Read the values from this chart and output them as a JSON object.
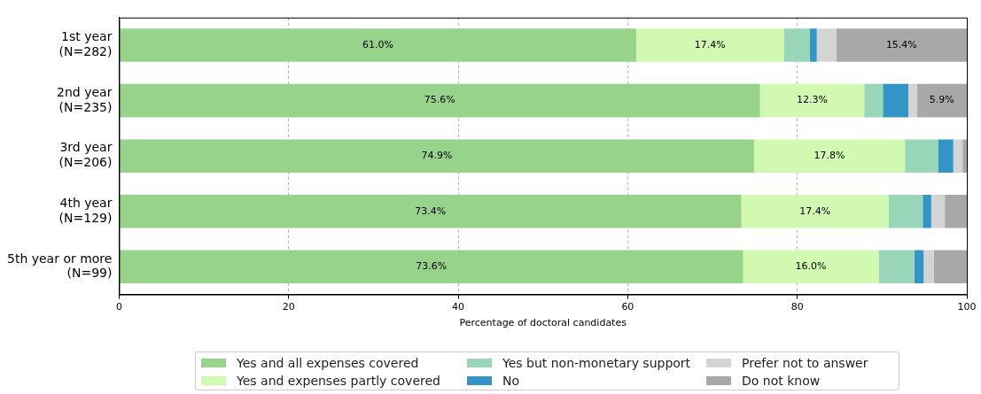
{
  "chart_data": {
    "type": "bar",
    "orientation": "horizontal",
    "stacked": true,
    "xlabel": "Percentage of doctoral candidates",
    "categories": [
      "1st year\n(N=282)",
      "2nd year\n(N=235)",
      "3rd year\n(N=206)",
      "4th year\n(N=129)",
      "5th year or more\n(N=99)"
    ],
    "xlim": [
      0,
      100
    ],
    "xticks": [
      0,
      20,
      40,
      60,
      80,
      100
    ],
    "grid": "x",
    "legend": "bottom",
    "series": [
      {
        "name": "Yes and all expenses covered",
        "color": "#98d38c",
        "values": [
          61.0,
          75.6,
          74.9,
          73.4,
          73.6
        ],
        "value_labels": [
          "61.0%",
          "75.6%",
          "74.9%",
          "73.4%",
          "73.6%"
        ]
      },
      {
        "name": "Yes and expenses partly covered",
        "color": "#d1f9b1",
        "values": [
          17.4,
          12.3,
          17.8,
          17.4,
          16.0
        ],
        "value_labels": [
          "17.4%",
          "12.3%",
          "17.8%",
          "17.4%",
          "16.0%"
        ]
      },
      {
        "name": "Yes but non-monetary support",
        "color": "#99d6b9",
        "values": [
          3.1,
          2.2,
          3.9,
          4.0,
          4.2
        ]
      },
      {
        "name": "No",
        "color": "#3494c6",
        "values": [
          0.8,
          3.0,
          1.8,
          1.0,
          1.1
        ]
      },
      {
        "name": "Prefer not to answer",
        "color": "#d4d4d4",
        "values": [
          2.3,
          1.0,
          1.1,
          1.6,
          1.2
        ]
      },
      {
        "name": "Do not know",
        "color": "#a8a8a8",
        "values": [
          15.4,
          5.9,
          0.5,
          2.6,
          3.9
        ],
        "value_labels": [
          "15.4%",
          "5.9%",
          null,
          null,
          null
        ]
      }
    ]
  }
}
